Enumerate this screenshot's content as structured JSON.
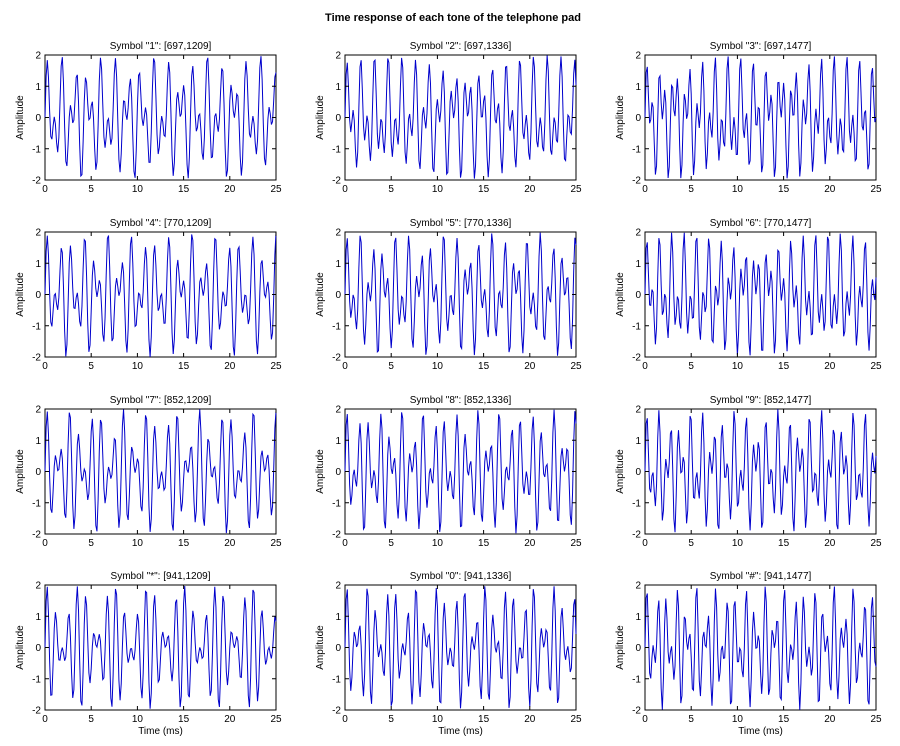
{
  "figure": {
    "title": "Time response of each tone of the telephone pad"
  },
  "chart_data": [
    {
      "type": "line",
      "title": "Symbol \"1\": [697,1209]",
      "f_low": 697,
      "f_high": 1209,
      "xlabel": "",
      "ylabel": "Amplitude",
      "xlim": [
        0,
        25
      ],
      "ylim": [
        -2,
        2
      ],
      "xticks": [
        0,
        5,
        10,
        15,
        20,
        25
      ],
      "yticks": [
        -2,
        -1,
        0,
        1,
        2
      ],
      "color": "#0000cc",
      "grid": false
    },
    {
      "type": "line",
      "title": "Symbol \"2\": [697,1336]",
      "f_low": 697,
      "f_high": 1336,
      "xlabel": "",
      "ylabel": "Amplitude",
      "xlim": [
        0,
        25
      ],
      "ylim": [
        -2,
        2
      ],
      "xticks": [
        0,
        5,
        10,
        15,
        20,
        25
      ],
      "yticks": [
        -2,
        -1,
        0,
        1,
        2
      ],
      "color": "#0000cc",
      "grid": false
    },
    {
      "type": "line",
      "title": "Symbol \"3\": [697,1477]",
      "f_low": 697,
      "f_high": 1477,
      "xlabel": "",
      "ylabel": "Amplitude",
      "xlim": [
        0,
        25
      ],
      "ylim": [
        -2,
        2
      ],
      "xticks": [
        0,
        5,
        10,
        15,
        20,
        25
      ],
      "yticks": [
        -2,
        -1,
        0,
        1,
        2
      ],
      "color": "#0000cc",
      "grid": false
    },
    {
      "type": "line",
      "title": "Symbol \"4\": [770,1209]",
      "f_low": 770,
      "f_high": 1209,
      "xlabel": "",
      "ylabel": "Amplitude",
      "xlim": [
        0,
        25
      ],
      "ylim": [
        -2,
        2
      ],
      "xticks": [
        0,
        5,
        10,
        15,
        20,
        25
      ],
      "yticks": [
        -2,
        -1,
        0,
        1,
        2
      ],
      "color": "#0000cc",
      "grid": false
    },
    {
      "type": "line",
      "title": "Symbol \"5\": [770,1336]",
      "f_low": 770,
      "f_high": 1336,
      "xlabel": "",
      "ylabel": "Amplitude",
      "xlim": [
        0,
        25
      ],
      "ylim": [
        -2,
        2
      ],
      "xticks": [
        0,
        5,
        10,
        15,
        20,
        25
      ],
      "yticks": [
        -2,
        -1,
        0,
        1,
        2
      ],
      "color": "#0000cc",
      "grid": false
    },
    {
      "type": "line",
      "title": "Symbol \"6\": [770,1477]",
      "f_low": 770,
      "f_high": 1477,
      "xlabel": "",
      "ylabel": "Amplitude",
      "xlim": [
        0,
        25
      ],
      "ylim": [
        -2,
        2
      ],
      "xticks": [
        0,
        5,
        10,
        15,
        20,
        25
      ],
      "yticks": [
        -2,
        -1,
        0,
        1,
        2
      ],
      "color": "#0000cc",
      "grid": false
    },
    {
      "type": "line",
      "title": "Symbol \"7\": [852,1209]",
      "f_low": 852,
      "f_high": 1209,
      "xlabel": "",
      "ylabel": "Amplitude",
      "xlim": [
        0,
        25
      ],
      "ylim": [
        -2,
        2
      ],
      "xticks": [
        0,
        5,
        10,
        15,
        20,
        25
      ],
      "yticks": [
        -2,
        -1,
        0,
        1,
        2
      ],
      "color": "#0000cc",
      "grid": false
    },
    {
      "type": "line",
      "title": "Symbol \"8\": [852,1336]",
      "f_low": 852,
      "f_high": 1336,
      "xlabel": "",
      "ylabel": "Amplitude",
      "xlim": [
        0,
        25
      ],
      "ylim": [
        -2,
        2
      ],
      "xticks": [
        0,
        5,
        10,
        15,
        20,
        25
      ],
      "yticks": [
        -2,
        -1,
        0,
        1,
        2
      ],
      "color": "#0000cc",
      "grid": false
    },
    {
      "type": "line",
      "title": "Symbol \"9\": [852,1477]",
      "f_low": 852,
      "f_high": 1477,
      "xlabel": "",
      "ylabel": "Amplitude",
      "xlim": [
        0,
        25
      ],
      "ylim": [
        -2,
        2
      ],
      "xticks": [
        0,
        5,
        10,
        15,
        20,
        25
      ],
      "yticks": [
        -2,
        -1,
        0,
        1,
        2
      ],
      "color": "#0000cc",
      "grid": false
    },
    {
      "type": "line",
      "title": "Symbol \"*\": [941,1209]",
      "f_low": 941,
      "f_high": 1209,
      "xlabel": "Time (ms)",
      "ylabel": "Amplitude",
      "xlim": [
        0,
        25
      ],
      "ylim": [
        -2,
        2
      ],
      "xticks": [
        0,
        5,
        10,
        15,
        20,
        25
      ],
      "yticks": [
        -2,
        -1,
        0,
        1,
        2
      ],
      "color": "#0000cc",
      "grid": false
    },
    {
      "type": "line",
      "title": "Symbol \"0\": [941,1336]",
      "f_low": 941,
      "f_high": 1336,
      "xlabel": "Time (ms)",
      "ylabel": "Amplitude",
      "xlim": [
        0,
        25
      ],
      "ylim": [
        -2,
        2
      ],
      "xticks": [
        0,
        5,
        10,
        15,
        20,
        25
      ],
      "yticks": [
        -2,
        -1,
        0,
        1,
        2
      ],
      "color": "#0000cc",
      "grid": false
    },
    {
      "type": "line",
      "title": "Symbol \"#\": [941,1477]",
      "f_low": 941,
      "f_high": 1477,
      "xlabel": "Time (ms)",
      "ylabel": "Amplitude",
      "xlim": [
        0,
        25
      ],
      "ylim": [
        -2,
        2
      ],
      "xticks": [
        0,
        5,
        10,
        15,
        20,
        25
      ],
      "yticks": [
        -2,
        -1,
        0,
        1,
        2
      ],
      "color": "#0000cc",
      "grid": false
    }
  ]
}
